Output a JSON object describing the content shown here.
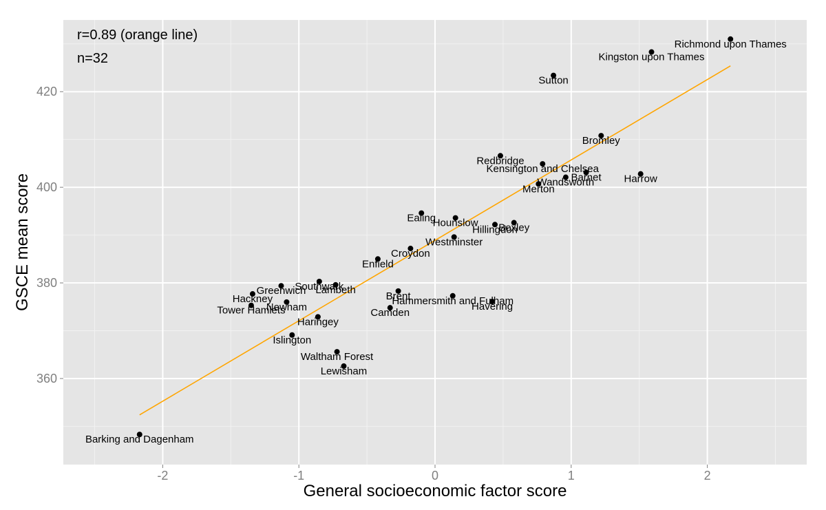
{
  "chart_data": {
    "type": "scatter",
    "title": "",
    "xlabel": "General socioeconomic factor score",
    "ylabel": "GSCE mean score",
    "xlim": [
      -2.73,
      2.73
    ],
    "ylim": [
      342,
      435
    ],
    "x_ticks": [
      -2,
      -1,
      0,
      1,
      2
    ],
    "y_ticks": [
      360,
      380,
      400,
      420
    ],
    "grid": true,
    "annotations": [
      "r=0.89 (orange line)",
      "n=32"
    ],
    "fit_line": {
      "color": "#ffa500",
      "x": [
        -2.17,
        2.17
      ],
      "y": [
        352.4,
        425.4
      ]
    },
    "point_color": "#000000",
    "points": [
      {
        "label": "Richmond upon Thames",
        "x": 2.17,
        "y": 431.0
      },
      {
        "label": "Kingston upon Thames",
        "x": 1.59,
        "y": 428.3
      },
      {
        "label": "Sutton",
        "x": 0.87,
        "y": 423.4
      },
      {
        "label": "Bromley",
        "x": 1.22,
        "y": 410.8
      },
      {
        "label": "Redbridge",
        "x": 0.48,
        "y": 406.6
      },
      {
        "label": "Kensington and Chelsea",
        "x": 0.79,
        "y": 404.9
      },
      {
        "label": "Barnet",
        "x": 1.11,
        "y": 403.1
      },
      {
        "label": "Harrow",
        "x": 1.51,
        "y": 402.8
      },
      {
        "label": "Wandsworth",
        "x": 0.96,
        "y": 402.1
      },
      {
        "label": "Merton",
        "x": 0.76,
        "y": 400.7
      },
      {
        "label": "Ealing",
        "x": -0.1,
        "y": 394.6
      },
      {
        "label": "Hounslow",
        "x": 0.15,
        "y": 393.6
      },
      {
        "label": "Bexley",
        "x": 0.58,
        "y": 392.6
      },
      {
        "label": "Hillingdon",
        "x": 0.44,
        "y": 392.2
      },
      {
        "label": "Westminster",
        "x": 0.14,
        "y": 389.6
      },
      {
        "label": "Croydon",
        "x": -0.18,
        "y": 387.2
      },
      {
        "label": "Enfield",
        "x": -0.42,
        "y": 385.0
      },
      {
        "label": "Southwark",
        "x": -0.85,
        "y": 380.3
      },
      {
        "label": "Lambeth",
        "x": -0.73,
        "y": 379.6
      },
      {
        "label": "Greenwich",
        "x": -1.13,
        "y": 379.4
      },
      {
        "label": "Brent",
        "x": -0.27,
        "y": 378.3
      },
      {
        "label": "Hackney",
        "x": -1.34,
        "y": 377.7
      },
      {
        "label": "Hammersmith and Fulham",
        "x": 0.13,
        "y": 377.3
      },
      {
        "label": "Havering",
        "x": 0.42,
        "y": 376.1
      },
      {
        "label": "Newham",
        "x": -1.09,
        "y": 376.0
      },
      {
        "label": "Tower Hamlets",
        "x": -1.35,
        "y": 375.3
      },
      {
        "label": "Camden",
        "x": -0.33,
        "y": 374.8
      },
      {
        "label": "Haringey",
        "x": -0.86,
        "y": 372.9
      },
      {
        "label": "Islington",
        "x": -1.05,
        "y": 369.1
      },
      {
        "label": "Waltham Forest",
        "x": -0.72,
        "y": 365.6
      },
      {
        "label": "Lewisham",
        "x": -0.67,
        "y": 362.6
      },
      {
        "label": "Barking and Dagenham",
        "x": -2.17,
        "y": 348.3
      }
    ]
  }
}
